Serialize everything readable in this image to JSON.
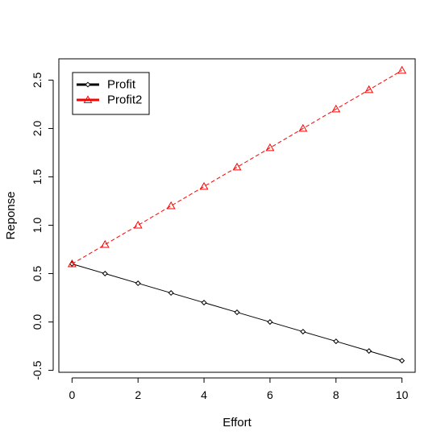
{
  "chart_data": {
    "type": "line",
    "title": "",
    "xlabel": "Effort",
    "ylabel": "Reponse",
    "xlim": [
      -0.4,
      10.4
    ],
    "ylim": [
      -0.52,
      2.72
    ],
    "x_ticks": [
      0,
      2,
      4,
      6,
      8,
      10
    ],
    "x_tick_labels": [
      "0",
      "2",
      "4",
      "6",
      "8",
      "10"
    ],
    "y_ticks": [
      -0.5,
      0.0,
      0.5,
      1.0,
      1.5,
      2.0,
      2.5
    ],
    "y_tick_labels": [
      "-0.5",
      "0.0",
      "0.5",
      "1.0",
      "1.5",
      "2.0",
      "2.5"
    ],
    "grid": false,
    "legend_position": "top-left",
    "x": [
      0,
      1,
      2,
      3,
      4,
      5,
      6,
      7,
      8,
      9,
      10
    ],
    "series": [
      {
        "name": "Profit",
        "values": [
          0.6,
          0.5,
          0.4,
          0.3,
          0.2,
          0.1,
          0.0,
          -0.1,
          -0.2,
          -0.3,
          -0.4
        ],
        "color": "#000000",
        "line_style": "solid",
        "marker": "diamond"
      },
      {
        "name": "Profit2",
        "values": [
          0.6,
          0.8,
          1.0,
          1.2,
          1.4,
          1.6,
          1.8,
          2.0,
          2.2,
          2.4,
          2.6
        ],
        "color": "#ff0000",
        "line_style": "dashed",
        "marker": "triangle"
      }
    ]
  }
}
